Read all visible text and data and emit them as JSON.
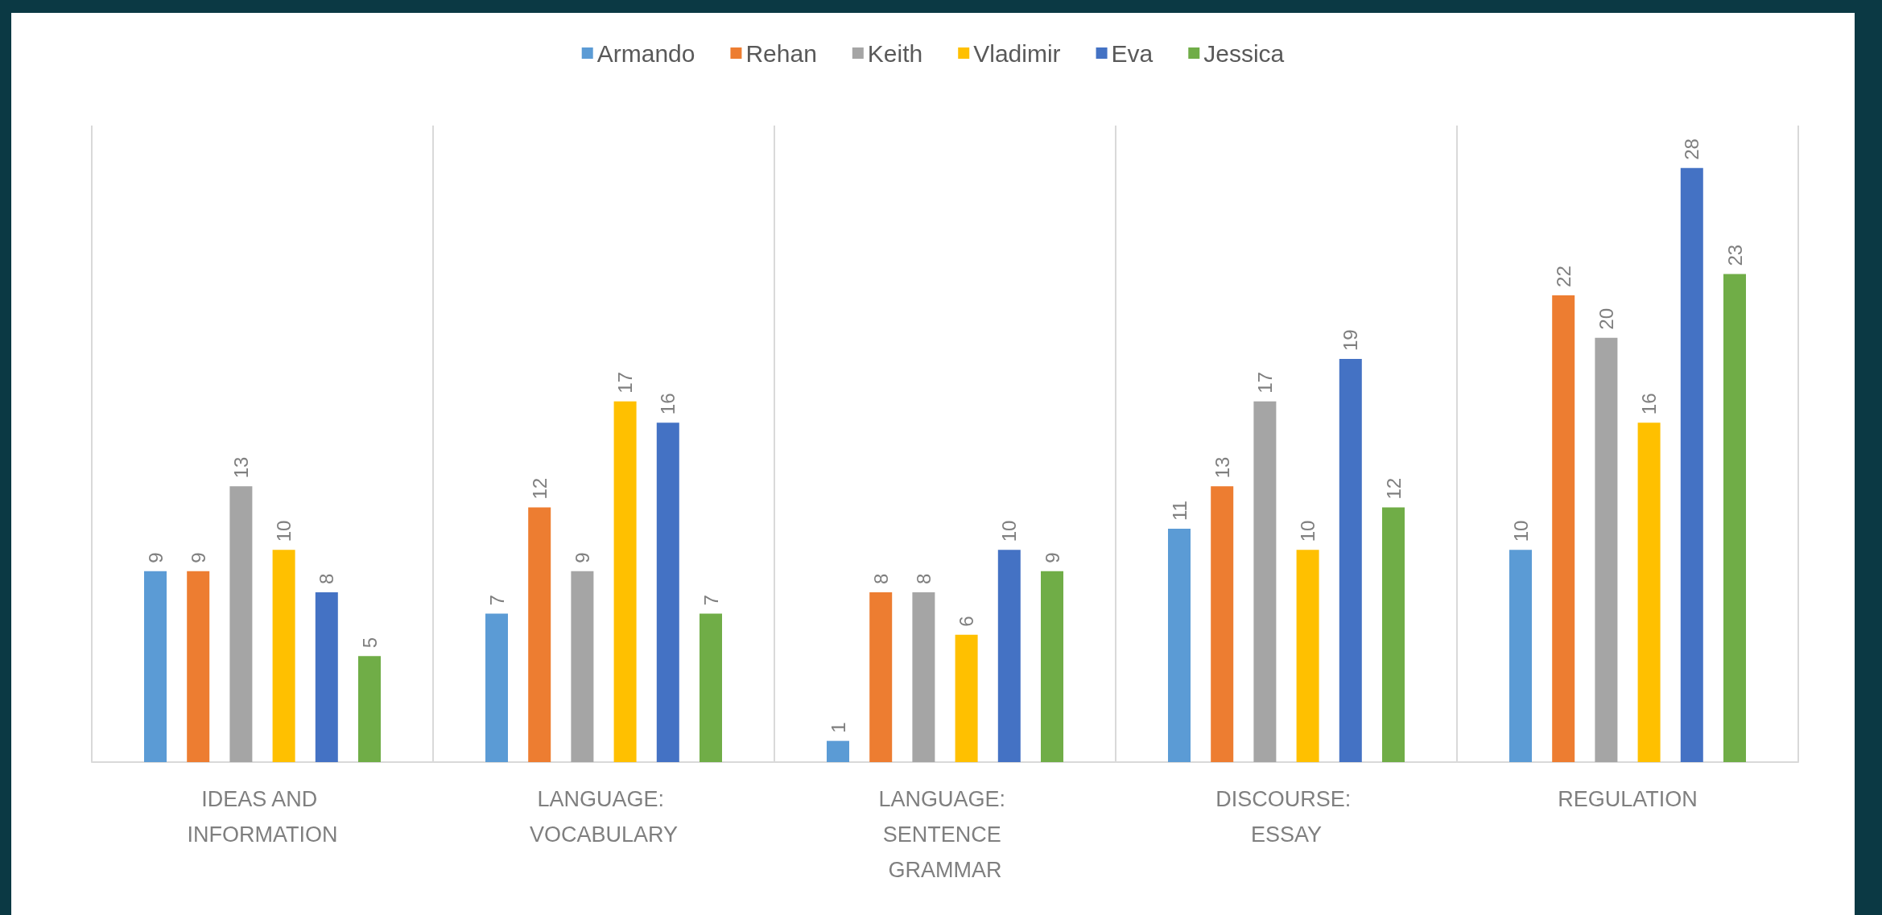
{
  "chart_data": {
    "type": "bar",
    "categories": [
      "IDEAS AND INFORMATION",
      "LANGUAGE: VOCABULARY",
      "LANGUAGE: SENTENCE GRAMMAR",
      "DISCOURSE: ESSAY",
      "REGULATION"
    ],
    "series": [
      {
        "name": "Armando",
        "color": "#5b9bd5",
        "values": [
          9,
          7,
          1,
          11,
          10
        ]
      },
      {
        "name": "Rehan",
        "color": "#ed7d31",
        "values": [
          9,
          12,
          8,
          13,
          22
        ]
      },
      {
        "name": "Keith",
        "color": "#a5a5a5",
        "values": [
          13,
          9,
          8,
          17,
          20
        ]
      },
      {
        "name": "Vladimir",
        "color": "#ffc000",
        "values": [
          10,
          17,
          6,
          10,
          16
        ]
      },
      {
        "name": "Eva",
        "color": "#4472c4",
        "values": [
          8,
          16,
          10,
          19,
          28
        ]
      },
      {
        "name": "Jessica",
        "color": "#70ad47",
        "values": [
          5,
          7,
          9,
          12,
          23
        ]
      }
    ],
    "data_labels": true,
    "grid": "x",
    "legend": "top"
  }
}
